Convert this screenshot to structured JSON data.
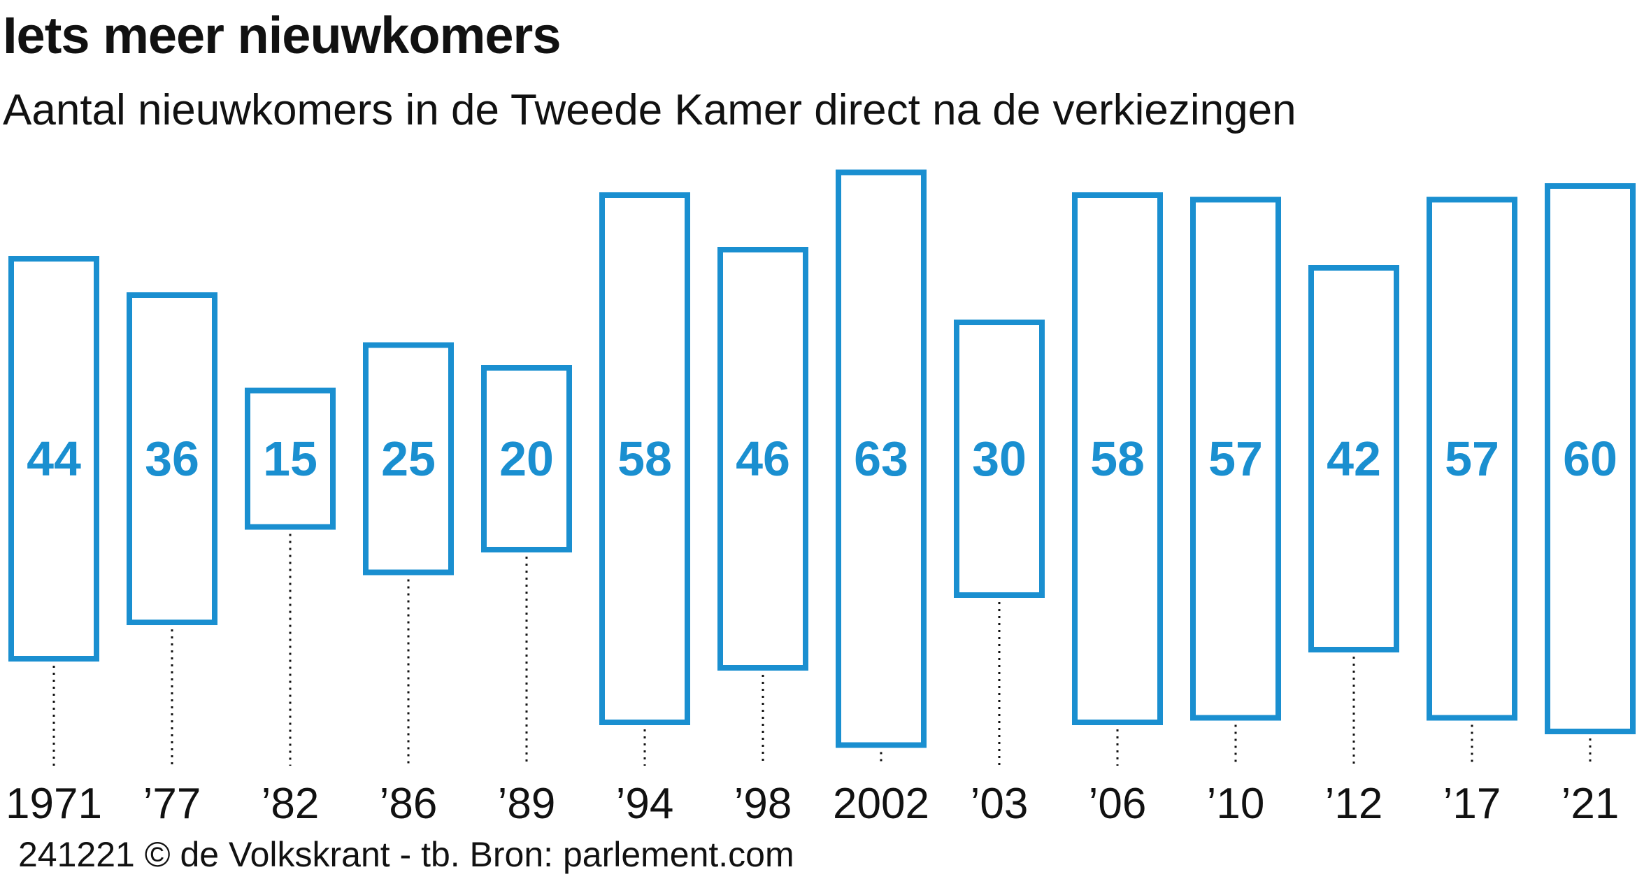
{
  "title": "Iets meer nieuwkomers",
  "subtitle": "Aantal nieuwkomers in de Tweede Kamer direct na de verkiezingen",
  "footer": "241221 © de Volkskrant - tb. Bron: parlement.com",
  "colors": {
    "accent": "#1a8fd0",
    "text": "#111111"
  },
  "chart_data": {
    "type": "bar",
    "categories": [
      "1971",
      "’77",
      "’82",
      "’86",
      "’89",
      "’94",
      "’98",
      "2002",
      "’03",
      "’06",
      "’10",
      "’12",
      "’17",
      "’21"
    ],
    "values": [
      44,
      36,
      15,
      25,
      20,
      58,
      46,
      63,
      30,
      58,
      57,
      42,
      57,
      60
    ],
    "title": "Iets meer nieuwkomers",
    "subtitle": "Aantal nieuwkomers in de Tweede Kamer direct na de verkiezingen",
    "xlabel": "",
    "ylabel": "",
    "grid": false,
    "legend": "none",
    "bar_style": "outlined, centered vertically, data labels inside"
  }
}
